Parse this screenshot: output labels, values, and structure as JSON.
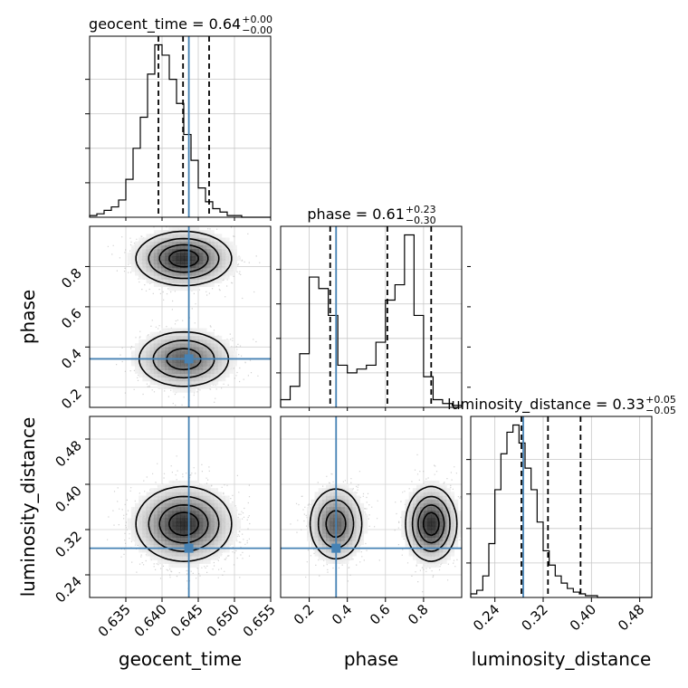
{
  "chart_data": {
    "type": "corner",
    "parameters": [
      "geocent_time",
      "phase",
      "luminosity_distance"
    ],
    "truth_color": "#4682b4",
    "truths": {
      "geocent_time": 0.6437,
      "phase": 0.341,
      "luminosity_distance": 0.287
    },
    "panels": {
      "geocent_time": {
        "title": {
          "label": "geocent_time = 0.64",
          "plus": "+0.00",
          "minus": "−0.00"
        },
        "xlim": [
          0.63,
          0.655
        ],
        "quantiles": [
          0.6395,
          0.6429,
          0.6465
        ],
        "hist": {
          "start": 0.63,
          "width": 0.001,
          "counts": [
            1,
            2,
            4,
            6,
            10,
            22,
            40,
            58,
            83,
            100,
            94,
            80,
            66,
            48,
            33,
            17,
            9,
            5,
            3,
            1,
            1,
            0,
            0,
            0,
            0
          ]
        }
      },
      "phase": {
        "title": {
          "label": "phase = 0.61",
          "plus": "+0.23",
          "minus": "−0.30"
        },
        "xlim": [
          0.05,
          1.0
        ],
        "quantiles": [
          0.31,
          0.61,
          0.84
        ],
        "hist": {
          "start": 0.05,
          "width": 0.05,
          "counts": [
            4,
            11,
            28,
            68,
            62,
            48,
            22,
            18,
            20,
            22,
            34,
            56,
            64,
            90,
            48,
            16,
            4,
            2,
            1
          ]
        }
      },
      "luminosity_distance": {
        "title": {
          "label": "luminosity_distance = 0.33",
          "plus": "+0.05",
          "minus": "−0.05"
        },
        "xlim": [
          0.2,
          0.5
        ],
        "quantiles": [
          0.284,
          0.328,
          0.382
        ],
        "hist": {
          "start": 0.2,
          "width": 0.01,
          "counts": [
            2,
            4,
            12,
            30,
            60,
            80,
            92,
            96,
            86,
            72,
            60,
            42,
            26,
            18,
            12,
            8,
            5,
            3,
            2,
            1,
            1,
            0,
            0,
            0,
            0,
            0,
            0,
            0,
            0,
            0
          ]
        }
      }
    },
    "axes": {
      "geocent_time": {
        "ticks": [
          "0.635",
          "0.640",
          "0.645",
          "0.650",
          "0.655"
        ],
        "tick_values": [
          0.635,
          0.64,
          0.645,
          0.65,
          0.655
        ],
        "label": "geocent_time"
      },
      "phase": {
        "ticks": [
          "0.2",
          "0.4",
          "0.6",
          "0.8"
        ],
        "tick_values": [
          0.2,
          0.4,
          0.6,
          0.8
        ],
        "label": "phase",
        "ylim": [
          0.1,
          1.0
        ]
      },
      "luminosity_distance": {
        "ticks": [
          "0.24",
          "0.32",
          "0.40",
          "0.48"
        ],
        "tick_values": [
          0.24,
          0.32,
          0.4,
          0.48
        ],
        "label": "luminosity_distance",
        "ylim": [
          0.2,
          0.52
        ]
      }
    },
    "modes": {
      "geocent_time": [
        {
          "mu": 0.643,
          "sd": 0.0032,
          "w": 1
        }
      ],
      "phase": [
        {
          "mu": 0.84,
          "sd": 0.065,
          "w": 0.55
        },
        {
          "mu": 0.34,
          "sd": 0.07,
          "w": 0.45
        }
      ],
      "luminosity_distance": [
        {
          "mu": 0.33,
          "sd": 0.032,
          "w": 1
        }
      ]
    },
    "grid": true
  }
}
